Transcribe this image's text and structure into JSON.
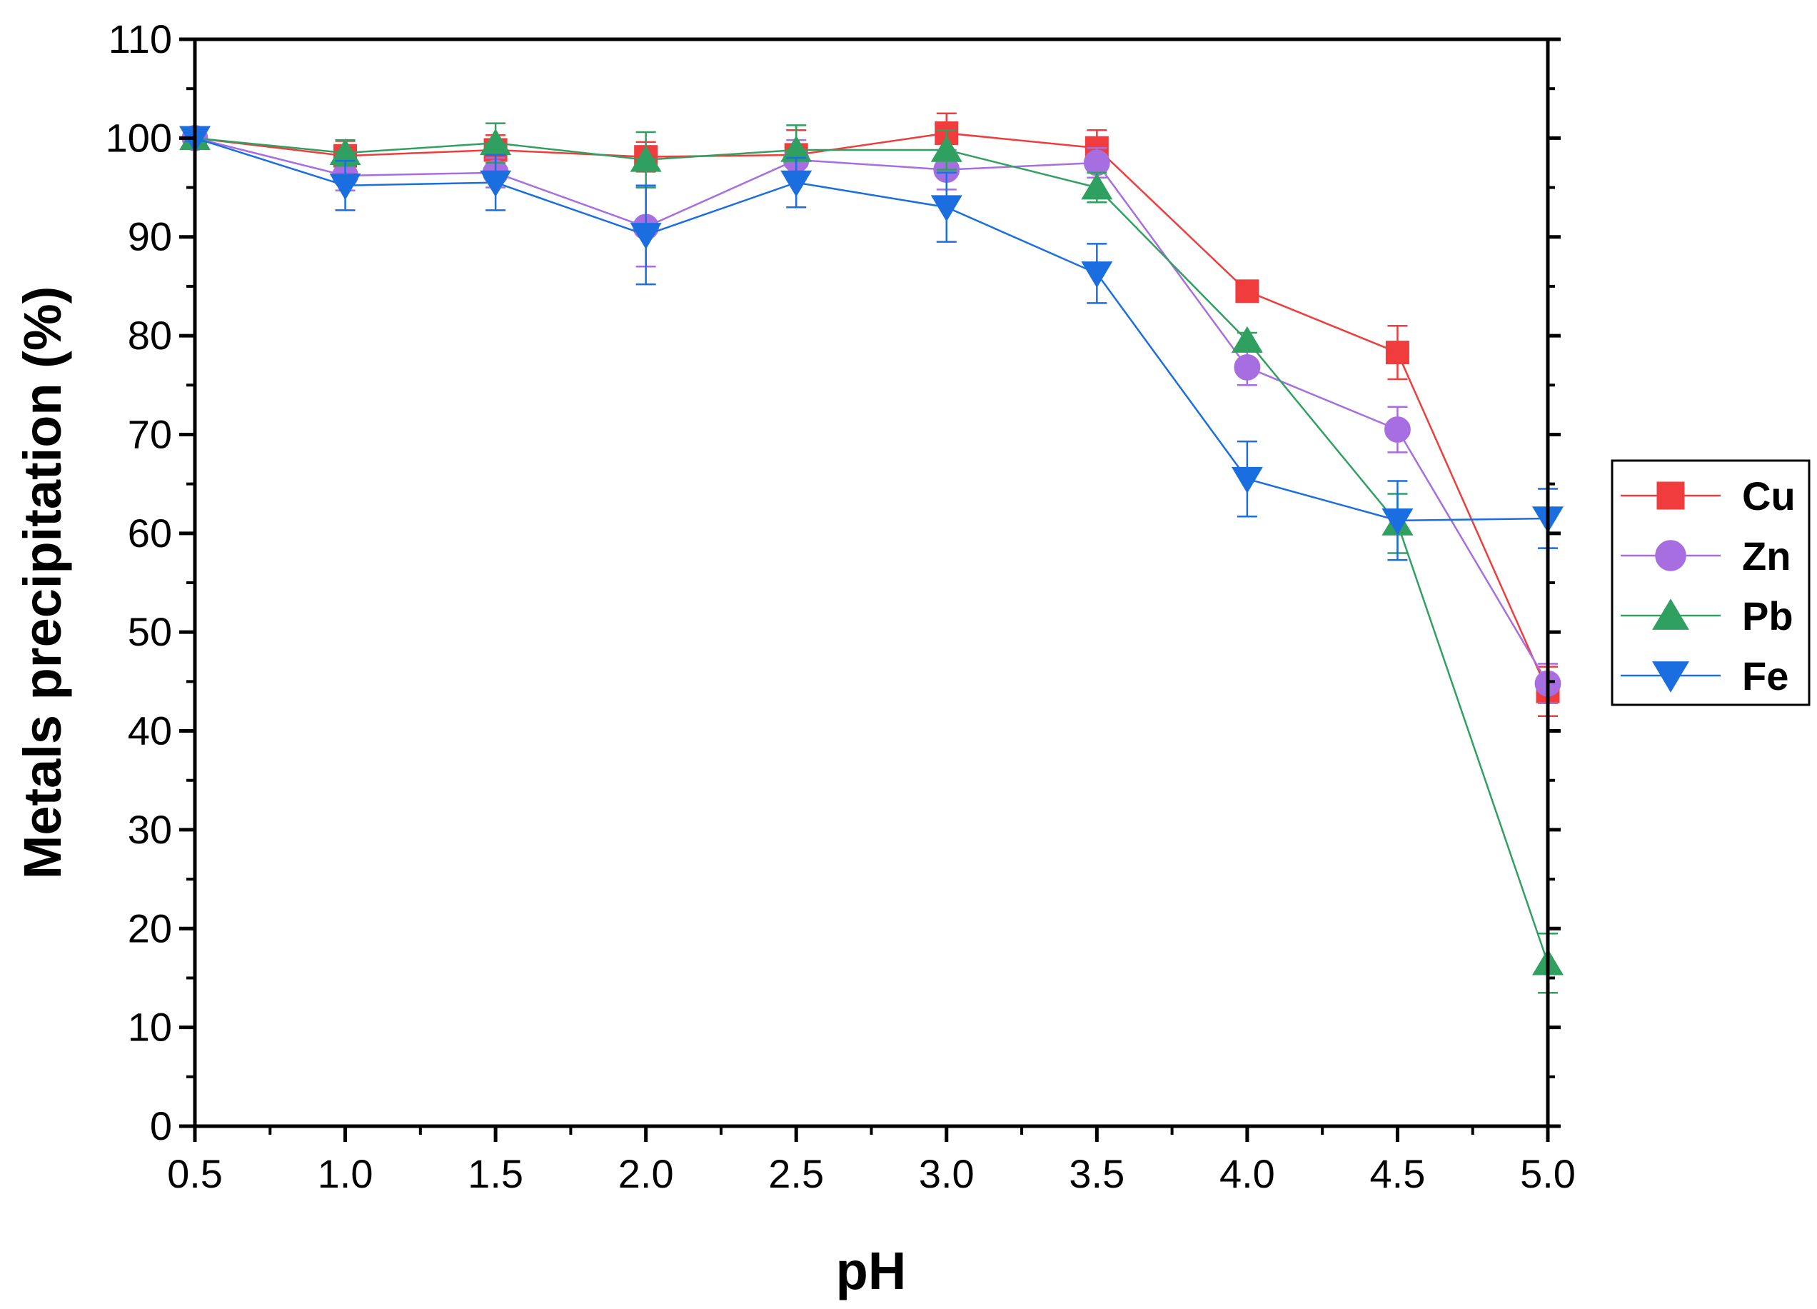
{
  "chart_data": {
    "type": "line",
    "title": "",
    "xlabel": "pH",
    "ylabel": "Metals precipitation (%)",
    "x": [
      0.5,
      1.0,
      1.5,
      2.0,
      2.5,
      3.0,
      3.5,
      4.0,
      4.5,
      5.0
    ],
    "x_tick_labels": [
      "0.5",
      "1.0",
      "1.5",
      "2.0",
      "2.5",
      "3.0",
      "3.5",
      "4.0",
      "4.5",
      "5.0"
    ],
    "y_tick_values": [
      0,
      10,
      20,
      30,
      40,
      50,
      60,
      70,
      80,
      90,
      100,
      110
    ],
    "y_tick_labels": [
      "0",
      "10",
      "20",
      "30",
      "40",
      "50",
      "60",
      "70",
      "80",
      "90",
      "100",
      "110"
    ],
    "xlim": [
      0.5,
      5.0
    ],
    "ylim": [
      0,
      110
    ],
    "grid": false,
    "legend_position": "right",
    "series": [
      {
        "name": "Cu",
        "marker": "square",
        "color": "#f03c3c",
        "values": [
          100,
          98.2,
          98.8,
          98.1,
          98.3,
          100.5,
          99.0,
          84.5,
          78.3,
          44.0
        ],
        "errors": [
          0.3,
          1.5,
          1.5,
          1.5,
          2.5,
          2.0,
          1.8,
          0.5,
          2.7,
          2.5
        ]
      },
      {
        "name": "Zn",
        "marker": "circle",
        "color": "#a66ee0",
        "values": [
          100,
          96.2,
          96.5,
          91.0,
          97.8,
          96.8,
          97.5,
          76.8,
          70.5,
          44.8
        ],
        "errors": [
          0.3,
          1.5,
          1.5,
          4.0,
          2.0,
          2.0,
          1.5,
          1.8,
          2.3,
          2.0
        ]
      },
      {
        "name": "Pb",
        "marker": "triangle-up",
        "color": "#30a060",
        "values": [
          100,
          98.5,
          99.5,
          97.8,
          98.8,
          98.8,
          95.0,
          79.5,
          61.0,
          16.5
        ],
        "errors": [
          0.3,
          1.3,
          2.0,
          2.8,
          2.5,
          2.0,
          1.5,
          0.8,
          3.0,
          3.0
        ]
      },
      {
        "name": "Fe",
        "marker": "triangle-down",
        "color": "#1a6ee0",
        "values": [
          100,
          95.2,
          95.5,
          90.2,
          95.5,
          93.0,
          86.3,
          65.5,
          61.3,
          61.5
        ],
        "errors": [
          0.3,
          2.5,
          2.8,
          5.0,
          2.5,
          3.5,
          3.0,
          3.8,
          4.0,
          3.0
        ]
      }
    ]
  }
}
